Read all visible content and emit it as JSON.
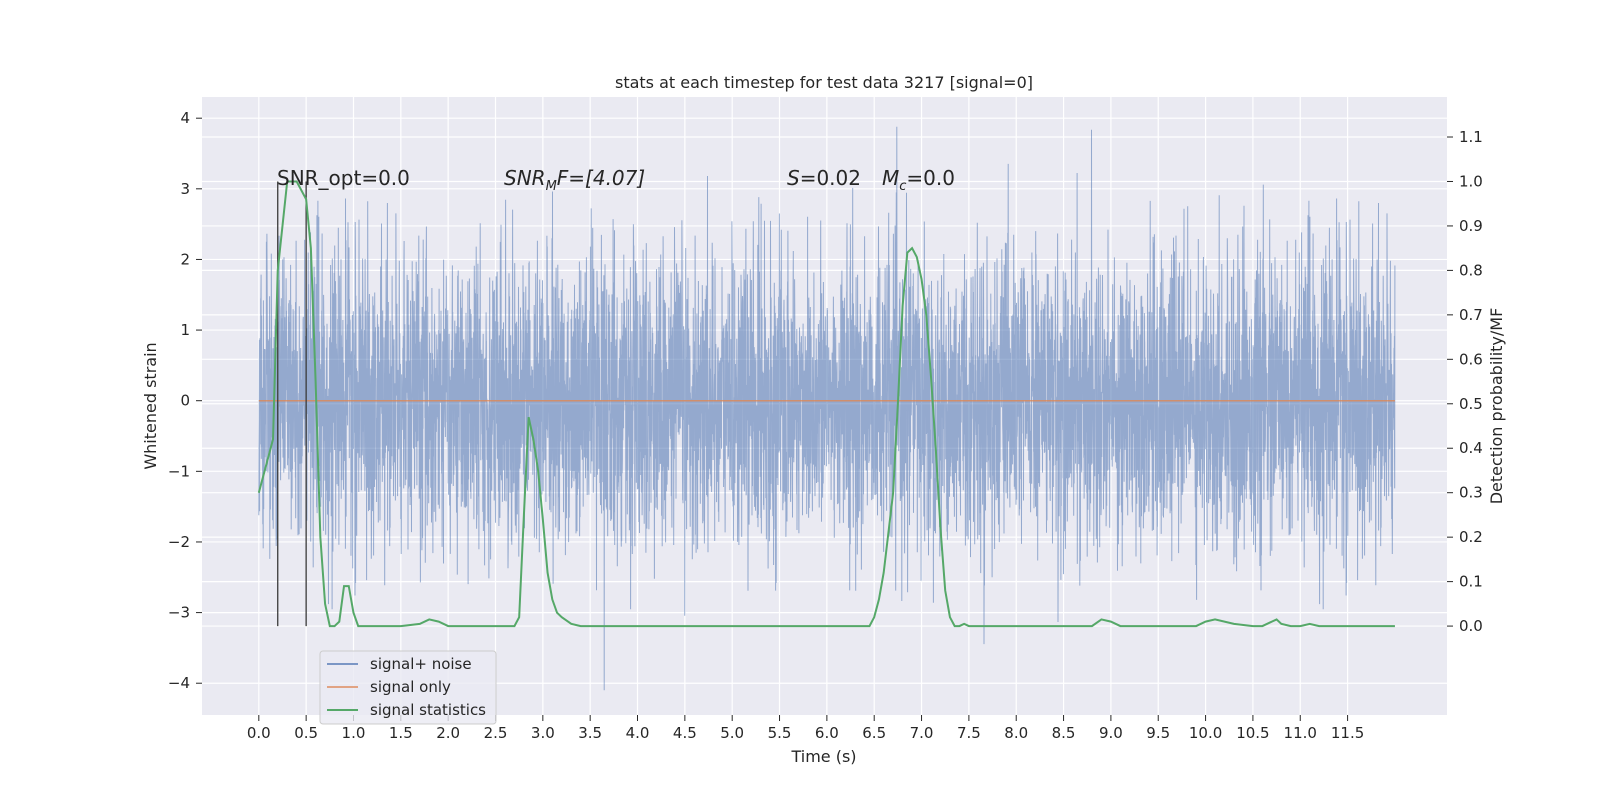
{
  "chart_data": {
    "type": "line",
    "title": "stats at each timestep for test data 3217 [signal=0]",
    "xlabel": "Time (s)",
    "ylabel": "Whitened strain",
    "ylabel_right": "Detection probability/MF",
    "xlim": [
      -0.6,
      12.55
    ],
    "ylim": [
      -4.45,
      4.3
    ],
    "ylim_right": [
      -0.2,
      1.19
    ],
    "x_ticks": [
      0.0,
      0.5,
      1.0,
      1.5,
      2.0,
      2.5,
      3.0,
      3.5,
      4.0,
      4.5,
      5.0,
      5.5,
      6.0,
      6.5,
      7.0,
      7.5,
      8.0,
      8.5,
      9.0,
      9.5,
      10.0,
      10.5,
      11.0,
      11.5
    ],
    "x_tick_labels": [
      "0.0",
      "0.5",
      "1.0",
      "1.5",
      "2.0",
      "2.5",
      "3.0",
      "3.5",
      "4.0",
      "4.5",
      "5.0",
      "5.5",
      "6.0",
      "6.5",
      "7.0",
      "7.5",
      "8.0",
      "8.5",
      "9.0",
      "9.5",
      "10.0",
      "10.5",
      "11.0",
      "11.5"
    ],
    "y_ticks": [
      -4,
      -3,
      -2,
      -1,
      0,
      1,
      2,
      3,
      4
    ],
    "y_tick_labels": [
      "−4",
      "−3",
      "−2",
      "−1",
      "0",
      "1",
      "2",
      "3",
      "4"
    ],
    "y_right_ticks": [
      0.0,
      0.1,
      0.2,
      0.3,
      0.4,
      0.5,
      0.6,
      0.7,
      0.8,
      0.9,
      1.0,
      1.1
    ],
    "y_right_tick_labels": [
      "0.0",
      "0.1",
      "0.2",
      "0.3",
      "0.4",
      "0.5",
      "0.6",
      "0.7",
      "0.8",
      "0.9",
      "1.0",
      "1.1"
    ],
    "grid": true,
    "legend_placement": "lower-left",
    "annotations": {
      "snr_opt": "SNR_opt=0.0",
      "snr_mf_base": "SNR",
      "snr_mf_sub": "M",
      "snr_mf_rest": "F=[4.07]",
      "s_label": "S",
      "s_value": "=0.02",
      "mc_label": "M",
      "mc_sub": "c",
      "mc_value": "=0.0"
    },
    "vlines_x": [
      0.2,
      0.5
    ],
    "series": [
      {
        "name": "signal+ noise",
        "color": "#4c72b0",
        "axis": "left",
        "x_range": [
          0.0,
          12.0
        ],
        "typical_amplitude": 1.3,
        "min": -4.1,
        "max": 3.9
      },
      {
        "name": "signal only",
        "color": "#dd8452",
        "axis": "left",
        "x": [
          0.0,
          12.0
        ],
        "y": [
          0.0,
          0.0
        ]
      },
      {
        "name": "signal statistics",
        "color": "#55a868",
        "axis": "right",
        "x": [
          0.0,
          0.15,
          0.2,
          0.3,
          0.4,
          0.5,
          0.55,
          0.6,
          0.65,
          0.7,
          0.75,
          0.8,
          0.85,
          0.9,
          0.95,
          1.0,
          1.05,
          1.1,
          1.2,
          1.5,
          1.7,
          1.8,
          1.9,
          2.0,
          2.5,
          2.7,
          2.75,
          2.8,
          2.85,
          2.9,
          2.95,
          3.0,
          3.05,
          3.1,
          3.15,
          3.2,
          3.3,
          3.4,
          3.5,
          4.0,
          4.5,
          5.0,
          5.5,
          6.0,
          6.3,
          6.45,
          6.5,
          6.55,
          6.6,
          6.7,
          6.75,
          6.8,
          6.85,
          6.9,
          6.95,
          7.0,
          7.05,
          7.1,
          7.15,
          7.2,
          7.25,
          7.3,
          7.35,
          7.4,
          7.45,
          7.5,
          7.6,
          7.7,
          7.8,
          8.0,
          8.5,
          8.8,
          8.9,
          9.0,
          9.1,
          9.5,
          9.8,
          9.9,
          10.0,
          10.1,
          10.3,
          10.5,
          10.6,
          10.7,
          10.75,
          10.8,
          10.9,
          11.0,
          11.1,
          11.2,
          11.5,
          11.8,
          12.0
        ],
        "y": [
          0.3,
          0.42,
          0.8,
          1.0,
          1.0,
          0.96,
          0.85,
          0.55,
          0.2,
          0.05,
          0.0,
          0.0,
          0.01,
          0.09,
          0.09,
          0.03,
          0.0,
          0.0,
          0.0,
          0.0,
          0.005,
          0.015,
          0.01,
          0.0,
          0.0,
          0.0,
          0.02,
          0.25,
          0.47,
          0.42,
          0.35,
          0.24,
          0.12,
          0.06,
          0.03,
          0.02,
          0.005,
          0.0,
          0.0,
          0.0,
          0.0,
          0.0,
          0.0,
          0.0,
          0.0,
          0.0,
          0.02,
          0.06,
          0.12,
          0.3,
          0.5,
          0.72,
          0.84,
          0.85,
          0.83,
          0.78,
          0.7,
          0.56,
          0.4,
          0.22,
          0.08,
          0.02,
          0.0,
          0.0,
          0.005,
          0.0,
          0.0,
          0.0,
          0.0,
          0.0,
          0.0,
          0.0,
          0.015,
          0.01,
          0.0,
          0.0,
          0.0,
          0.0,
          0.01,
          0.015,
          0.005,
          0.0,
          0.0,
          0.01,
          0.015,
          0.005,
          0.0,
          0.0,
          0.005,
          0.0,
          0.0,
          0.0,
          0.0
        ]
      }
    ]
  }
}
